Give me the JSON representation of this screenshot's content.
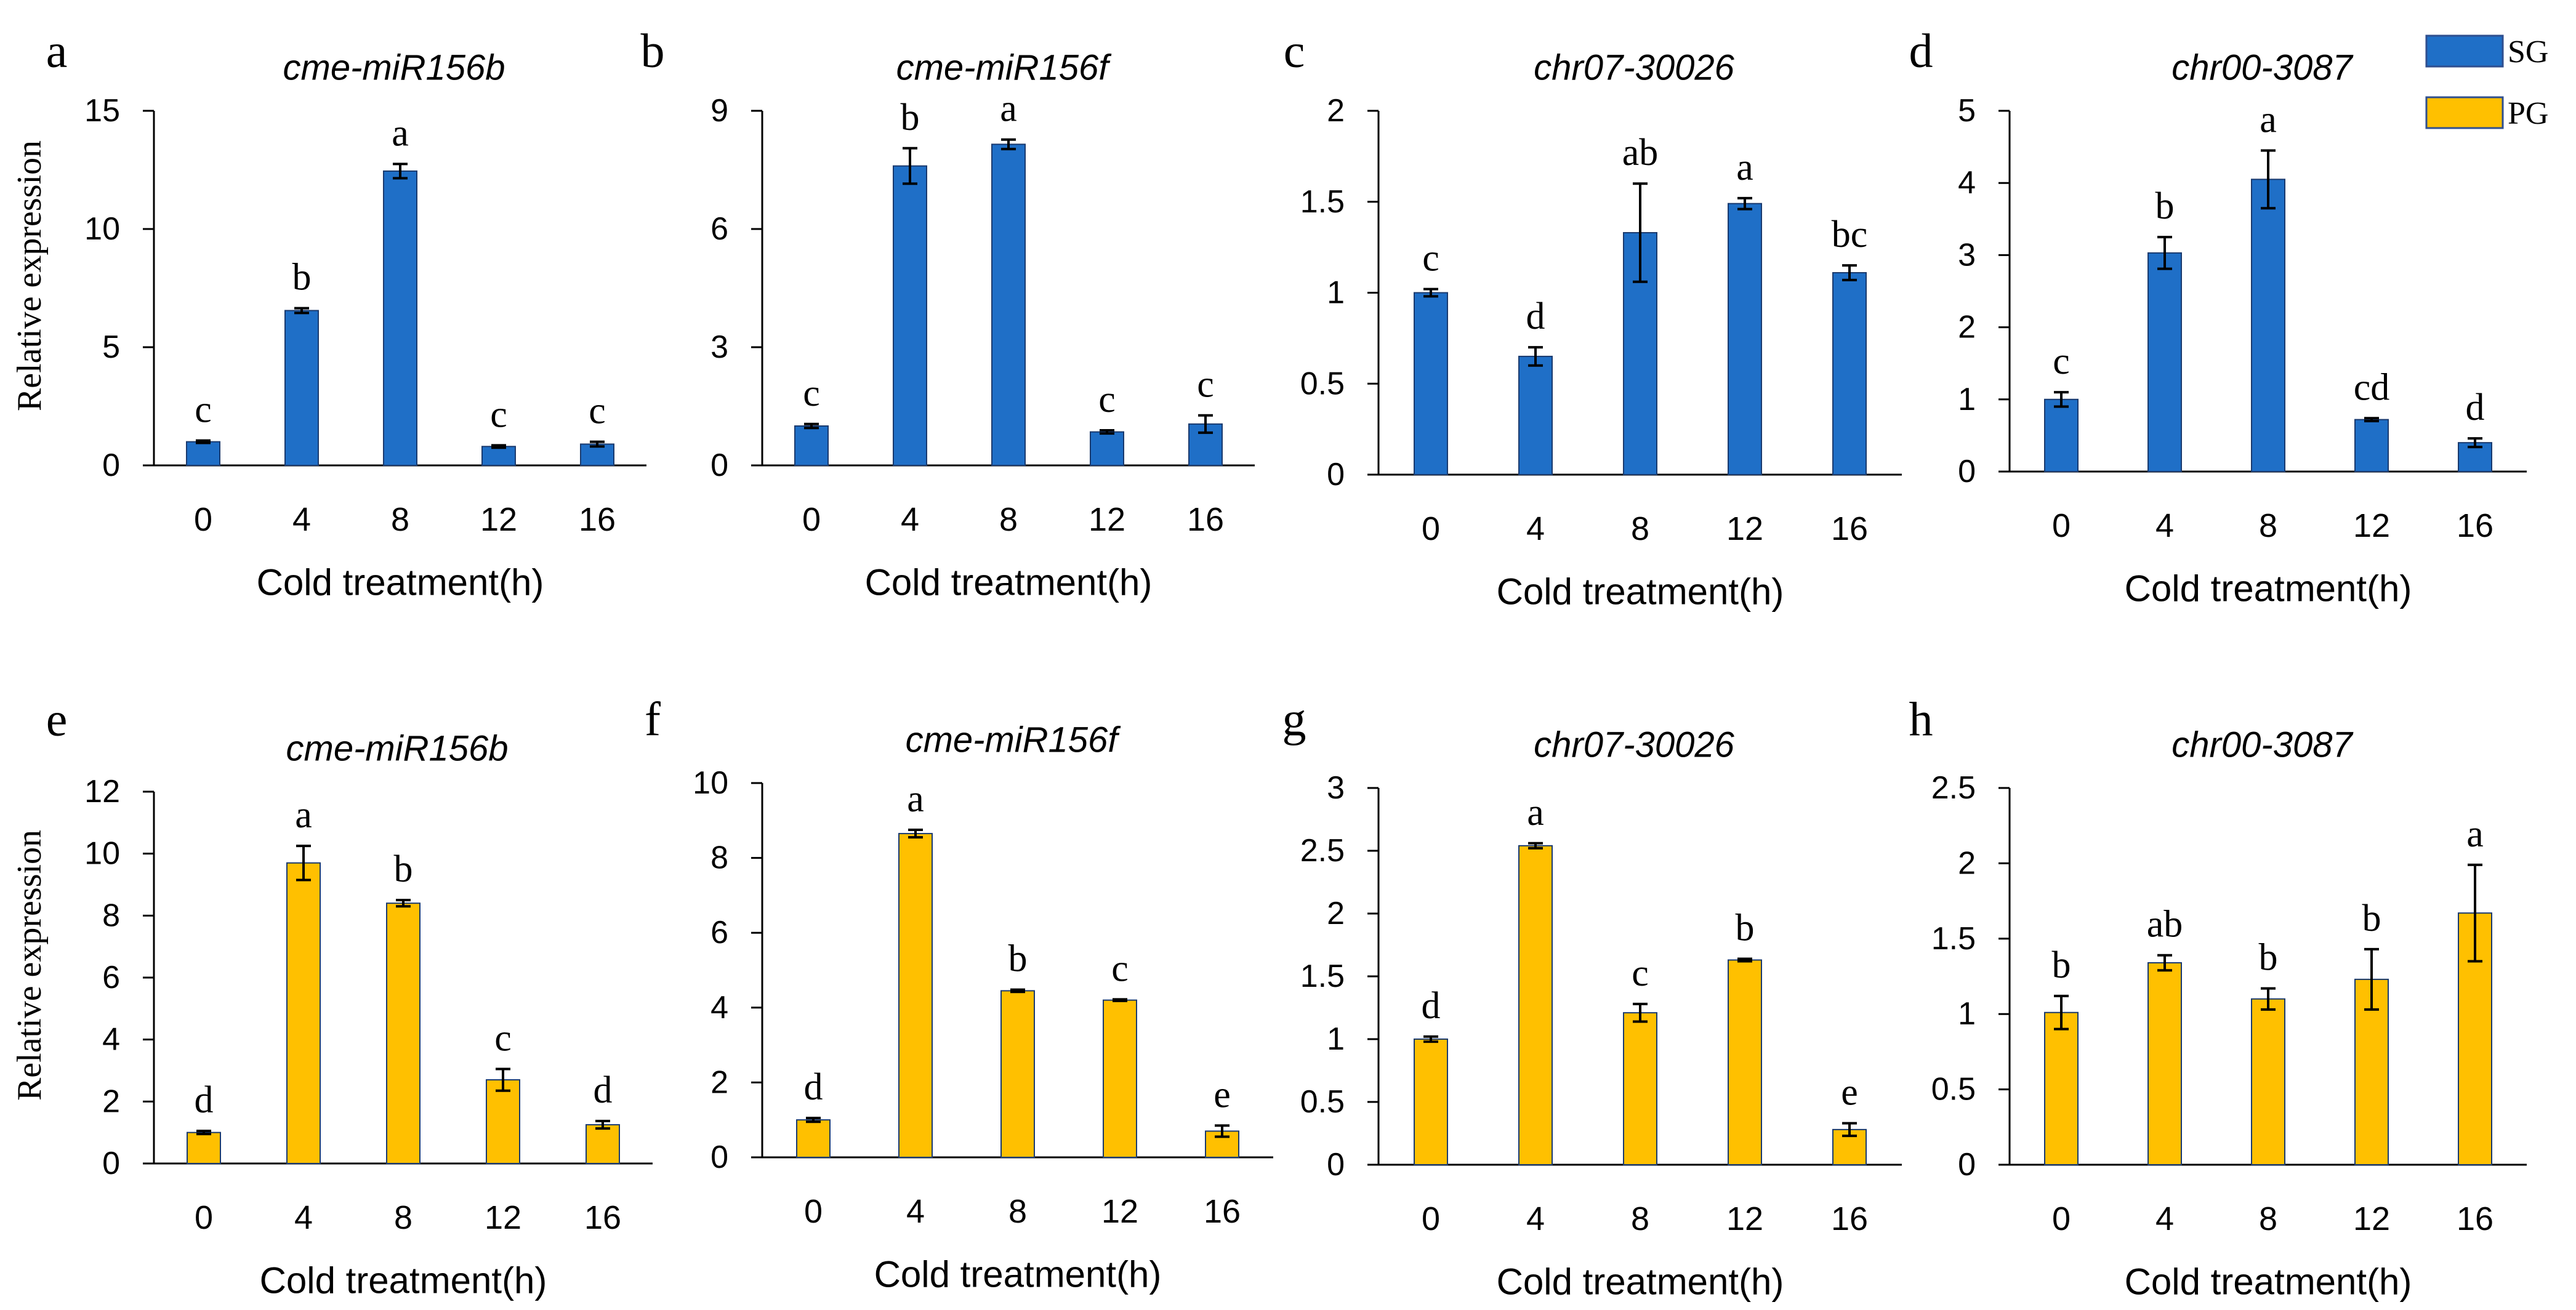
{
  "legend": {
    "items": [
      {
        "label": "SG",
        "color": "#1f6fc7"
      },
      {
        "label": "PG",
        "color": "#ffc000"
      }
    ],
    "position": "top-right"
  },
  "chart_data": [
    {
      "panel": "a",
      "type": "bar",
      "title": "cme-miR156b",
      "series": "SG",
      "color": "#1f6fc7",
      "categories": [
        "0",
        "4",
        "8",
        "12",
        "16"
      ],
      "values": [
        1.0,
        6.55,
        12.45,
        0.8,
        0.9
      ],
      "errors": [
        0.05,
        0.1,
        0.3,
        0.05,
        0.1
      ],
      "sig": [
        "c",
        "b",
        "a",
        "c",
        "c"
      ],
      "ylim": [
        0,
        15
      ],
      "yticks": [
        0,
        5,
        10,
        15
      ],
      "ytick_labels": [
        "0",
        "5",
        "10",
        "15"
      ],
      "xlabel": "Cold treatment(h)",
      "ylabel": "Relative expression"
    },
    {
      "panel": "b",
      "type": "bar",
      "title": "cme-miR156f",
      "series": "SG",
      "color": "#1f6fc7",
      "categories": [
        "0",
        "4",
        "8",
        "12",
        "16"
      ],
      "values": [
        1.0,
        7.6,
        8.15,
        0.85,
        1.05
      ],
      "errors": [
        0.05,
        0.45,
        0.12,
        0.04,
        0.22
      ],
      "sig": [
        "c",
        "b",
        "a",
        "c",
        "c"
      ],
      "ylim": [
        0,
        9
      ],
      "yticks": [
        0,
        3,
        6,
        9
      ],
      "ytick_labels": [
        "0",
        "3",
        "6",
        "9"
      ],
      "xlabel": "Cold treatment(h)",
      "ylabel": ""
    },
    {
      "panel": "c",
      "type": "bar",
      "title": "chr07-30026",
      "series": "SG",
      "color": "#1f6fc7",
      "categories": [
        "0",
        "4",
        "8",
        "12",
        "16"
      ],
      "values": [
        1.0,
        0.65,
        1.33,
        1.49,
        1.11
      ],
      "errors": [
        0.02,
        0.05,
        0.27,
        0.03,
        0.04
      ],
      "sig": [
        "c",
        "d",
        "ab",
        "a",
        "bc"
      ],
      "ylim": [
        0,
        2
      ],
      "yticks": [
        0,
        0.5,
        1,
        1.5,
        2
      ],
      "ytick_labels": [
        "0",
        "0.5",
        "1",
        "1.5",
        "2"
      ],
      "xlabel": "Cold treatment(h)",
      "ylabel": ""
    },
    {
      "panel": "d",
      "type": "bar",
      "title": "chr00-3087",
      "series": "SG",
      "color": "#1f6fc7",
      "categories": [
        "0",
        "4",
        "8",
        "12",
        "16"
      ],
      "values": [
        1.0,
        3.03,
        4.05,
        0.72,
        0.4
      ],
      "errors": [
        0.1,
        0.22,
        0.4,
        0.02,
        0.06
      ],
      "sig": [
        "c",
        "b",
        "a",
        "cd",
        "d"
      ],
      "ylim": [
        0,
        5
      ],
      "yticks": [
        0,
        1,
        2,
        3,
        4,
        5
      ],
      "ytick_labels": [
        "0",
        "1",
        "2",
        "3",
        "4",
        "5"
      ],
      "xlabel": "Cold treatment(h)",
      "ylabel": ""
    },
    {
      "panel": "e",
      "type": "bar",
      "title": "cme-miR156b",
      "series": "PG",
      "color": "#ffc000",
      "categories": [
        "0",
        "4",
        "8",
        "12",
        "16"
      ],
      "values": [
        1.0,
        9.7,
        8.4,
        2.7,
        1.25
      ],
      "errors": [
        0.05,
        0.55,
        0.1,
        0.35,
        0.12
      ],
      "sig": [
        "d",
        "a",
        "b",
        "c",
        "d"
      ],
      "ylim": [
        0,
        12
      ],
      "yticks": [
        0,
        2,
        4,
        6,
        8,
        10,
        12
      ],
      "ytick_labels": [
        "0",
        "2",
        "4",
        "6",
        "8",
        "10",
        "12"
      ],
      "xlabel": "Cold treatment(h)",
      "ylabel": "Relative expression"
    },
    {
      "panel": "f",
      "type": "bar",
      "title": "cme-miR156f",
      "series": "PG",
      "color": "#ffc000",
      "categories": [
        "0",
        "4",
        "8",
        "12",
        "16"
      ],
      "values": [
        1.0,
        8.65,
        4.45,
        4.2,
        0.7
      ],
      "errors": [
        0.05,
        0.1,
        0.03,
        0.02,
        0.15
      ],
      "sig": [
        "d",
        "a",
        "b",
        "c",
        "e"
      ],
      "ylim": [
        0,
        10
      ],
      "yticks": [
        0,
        2,
        4,
        6,
        8,
        10
      ],
      "ytick_labels": [
        "0",
        "2",
        "4",
        "6",
        "8",
        "10"
      ],
      "xlabel": "Cold treatment(h)",
      "ylabel": ""
    },
    {
      "panel": "g",
      "type": "bar",
      "title": "chr07-30026",
      "series": "PG",
      "color": "#ffc000",
      "categories": [
        "0",
        "4",
        "8",
        "12",
        "16"
      ],
      "values": [
        1.0,
        2.54,
        1.21,
        1.63,
        0.28
      ],
      "errors": [
        0.02,
        0.02,
        0.07,
        0.01,
        0.05
      ],
      "sig": [
        "d",
        "a",
        "c",
        "b",
        "e"
      ],
      "ylim": [
        0,
        3
      ],
      "yticks": [
        0,
        0.5,
        1,
        1.5,
        2,
        2.5,
        3
      ],
      "ytick_labels": [
        "0",
        "0.5",
        "1",
        "1.5",
        "2",
        "2.5",
        "3"
      ],
      "xlabel": "Cold treatment(h)",
      "ylabel": ""
    },
    {
      "panel": "h",
      "type": "bar",
      "title": "chr00-3087",
      "series": "PG",
      "color": "#ffc000",
      "categories": [
        "0",
        "4",
        "8",
        "12",
        "16"
      ],
      "values": [
        1.01,
        1.34,
        1.1,
        1.23,
        1.67
      ],
      "errors": [
        0.11,
        0.05,
        0.07,
        0.2,
        0.32
      ],
      "sig": [
        "b",
        "ab",
        "b",
        "b",
        "a"
      ],
      "ylim": [
        0,
        2.5
      ],
      "yticks": [
        0,
        0.5,
        1,
        1.5,
        2,
        2.5
      ],
      "ytick_labels": [
        "0",
        "0.5",
        "1",
        "1.5",
        "2",
        "2.5"
      ],
      "xlabel": "Cold treatment(h)",
      "ylabel": ""
    }
  ]
}
